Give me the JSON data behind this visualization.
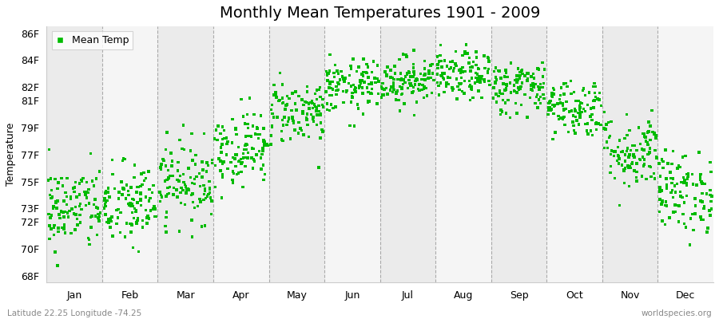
{
  "title": "Monthly Mean Temperatures 1901 - 2009",
  "ylabel": "Temperature",
  "xlabel_labels": [
    "Jan",
    "Feb",
    "Mar",
    "Apr",
    "May",
    "Jun",
    "Jul",
    "Aug",
    "Sep",
    "Oct",
    "Nov",
    "Dec"
  ],
  "ytick_values": [
    68,
    70,
    72,
    73,
    75,
    77,
    79,
    81,
    82,
    84,
    86
  ],
  "ytick_labels": [
    "68F",
    "70F",
    "72F",
    "73F",
    "75F",
    "77F",
    "79F",
    "81F",
    "82F",
    "84F",
    "86F"
  ],
  "ylim": [
    67.5,
    86.5
  ],
  "xlim": [
    0,
    12
  ],
  "marker_color": "#00bb00",
  "marker": "s",
  "marker_size": 2.5,
  "background_color": "#ffffff",
  "band_colors": [
    "#ebebeb",
    "#f5f5f5"
  ],
  "dashed_line_color": "#999999",
  "legend_label": "Mean Temp",
  "footnote_left": "Latitude 22.25 Longitude -74.25",
  "footnote_right": "worldspecies.org",
  "title_fontsize": 14,
  "axis_fontsize": 9,
  "n_years": 109,
  "monthly_means_f": [
    73.0,
    73.2,
    75.0,
    77.5,
    80.2,
    82.0,
    82.5,
    82.8,
    82.0,
    80.5,
    77.2,
    74.2
  ],
  "monthly_stds_f": [
    1.6,
    1.6,
    1.5,
    1.4,
    1.2,
    1.0,
    0.9,
    0.9,
    1.0,
    1.1,
    1.4,
    1.5
  ],
  "seed": 42,
  "dashed_line_positions": [
    1,
    2,
    3,
    4,
    5,
    6,
    7,
    8,
    9,
    10,
    11
  ],
  "xtick_positions": [
    0.5,
    1.5,
    2.5,
    3.5,
    4.5,
    5.5,
    6.5,
    7.5,
    8.5,
    9.5,
    10.5,
    11.5
  ]
}
